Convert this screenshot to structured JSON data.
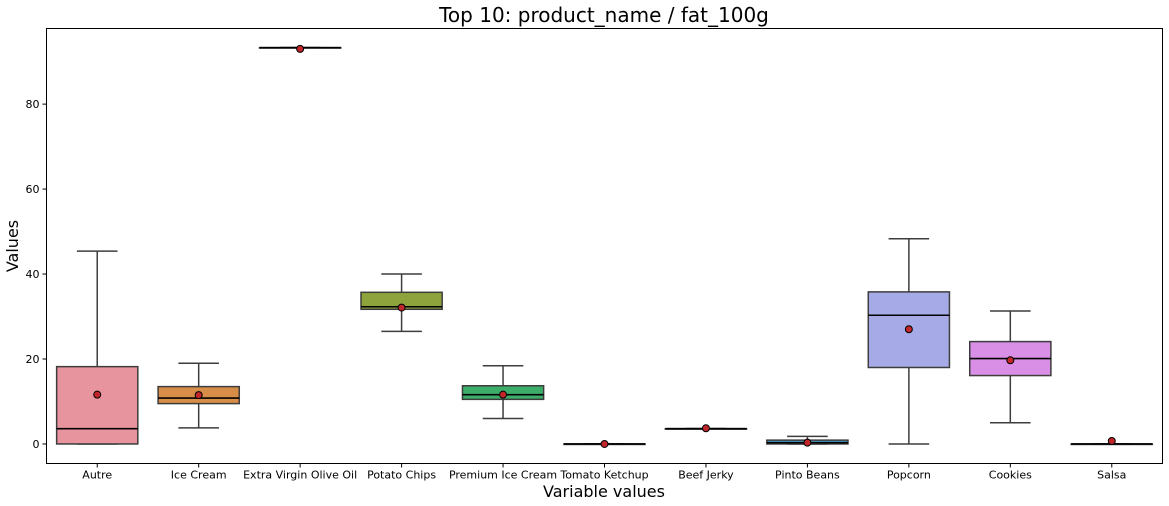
{
  "chart_data": {
    "type": "box",
    "title": "Top 10: product_name / fat_100g",
    "xlabel": "Variable values",
    "ylabel": "Values",
    "ylim": [
      -4.6,
      97.8
    ],
    "yticks": [
      0,
      20,
      40,
      60,
      80
    ],
    "grid": false,
    "legend": "none",
    "categories": [
      "Autre",
      "Ice Cream",
      "Extra Virgin Olive Oil",
      "Potato Chips",
      "Premium Ice Cream",
      "Tomato Ketchup",
      "Beef Jerky",
      "Pinto Beans",
      "Popcorn",
      "Cookies",
      "Salsa"
    ],
    "boxes": [
      {
        "name": "Autre",
        "color": "#E8949F",
        "whisker_low": 0,
        "q1": 0,
        "median": 3.6,
        "q3": 18.2,
        "whisker_high": 45.4,
        "mean": 11.6
      },
      {
        "name": "Ice Cream",
        "color": "#D78C48",
        "whisker_low": 3.8,
        "q1": 9.5,
        "median": 10.8,
        "q3": 13.5,
        "whisker_high": 19.0,
        "mean": 11.5
      },
      {
        "name": "Extra Virgin Olive Oil",
        "color": "#B9A04E",
        "whisker_low": 93.3,
        "q1": 93.3,
        "median": 93.3,
        "q3": 93.3,
        "whisker_high": 93.3,
        "mean": 93.0
      },
      {
        "name": "Potato Chips",
        "color": "#8FA33C",
        "whisker_low": 26.5,
        "q1": 31.7,
        "median": 32.3,
        "q3": 35.7,
        "whisker_high": 40.0,
        "mean": 32.1
      },
      {
        "name": "Premium Ice Cream",
        "color": "#3DAE6A",
        "whisker_low": 6.0,
        "q1": 10.5,
        "median": 11.6,
        "q3": 13.7,
        "whisker_high": 18.4,
        "mean": 11.6
      },
      {
        "name": "Tomato Ketchup",
        "color": "#40AE98",
        "whisker_low": 0,
        "q1": 0,
        "median": 0,
        "q3": 0,
        "whisker_high": 0,
        "mean": 0.0
      },
      {
        "name": "Beef Jerky",
        "color": "#3EA5B8",
        "whisker_low": 3.6,
        "q1": 3.6,
        "median": 3.6,
        "q3": 3.6,
        "whisker_high": 3.6,
        "mean": 3.7
      },
      {
        "name": "Pinto Beans",
        "color": "#4A9CC8",
        "whisker_low": 0,
        "q1": 0,
        "median": 0.3,
        "q3": 0.9,
        "whisker_high": 1.8,
        "mean": 0.3
      },
      {
        "name": "Popcorn",
        "color": "#A6ABE8",
        "whisker_low": 0,
        "q1": 18.0,
        "median": 30.3,
        "q3": 35.8,
        "whisker_high": 48.3,
        "mean": 27.0
      },
      {
        "name": "Cookies",
        "color": "#D98FE6",
        "whisker_low": 5.0,
        "q1": 16.1,
        "median": 20.1,
        "q3": 24.1,
        "whisker_high": 31.3,
        "mean": 19.7
      },
      {
        "name": "Salsa",
        "color": "#E58FC3",
        "whisker_low": 0,
        "q1": 0,
        "median": 0,
        "q3": 0,
        "whisker_high": 0,
        "mean": 0.7
      }
    ],
    "colors": {
      "box_edge": "#3d3d3d",
      "median_line": "#000000",
      "mean_marker_fill": "#c0262a",
      "mean_marker_edge": "#000000"
    }
  }
}
